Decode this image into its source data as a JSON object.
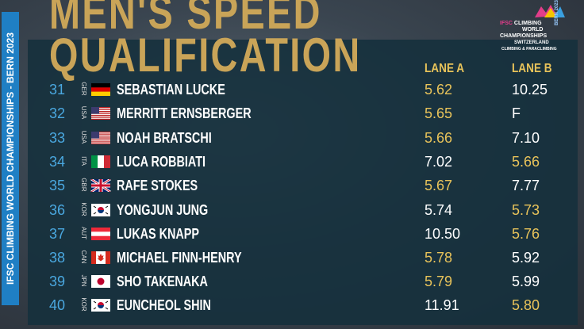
{
  "header": {
    "title_line1": "MEN'S SPEED",
    "title_line2": "QUALIFICATION",
    "side_banner": "IFSC CLIMBING WORLD CHAMPIONSHIPS - BERN 2023",
    "logo": {
      "brand": "IFSC",
      "line1": "CLIMBING",
      "line2": "WORLD",
      "line3": "CHAMPIONSHIPS",
      "country": "SWITZERLAND",
      "city": "BERN 2023",
      "tagline": "CLIMBING & PARACLIMBING"
    }
  },
  "table": {
    "columns": [
      "LANE A",
      "LANE B"
    ],
    "rows": [
      [
        "31",
        "GER",
        "SEBASTIAN LUCKE",
        "5.62",
        "10.25"
      ],
      [
        "32",
        "USA",
        "MERRITT ERNSBERGER",
        "5.65",
        "F"
      ],
      [
        "33",
        "USA",
        "NOAH BRATSCHI",
        "5.66",
        "7.10"
      ],
      [
        "34",
        "ITA",
        "LUCA ROBBIATI",
        "7.02",
        "5.66"
      ],
      [
        "35",
        "GBR",
        "RAFE STOKES",
        "5.67",
        "7.77"
      ],
      [
        "36",
        "KOR",
        "YONGJUN JUNG",
        "5.74",
        "5.73"
      ],
      [
        "37",
        "AUT",
        "LUKAS KNAPP",
        "10.50",
        "5.76"
      ],
      [
        "38",
        "CAN",
        "MICHAEL FINN-HENRY",
        "5.78",
        "5.92"
      ],
      [
        "39",
        "JPN",
        "SHO TAKENAKA",
        "5.79",
        "5.99"
      ],
      [
        "40",
        "KOR",
        "EUNCHEOL SHIN",
        "11.91",
        "5.80"
      ]
    ]
  }
}
